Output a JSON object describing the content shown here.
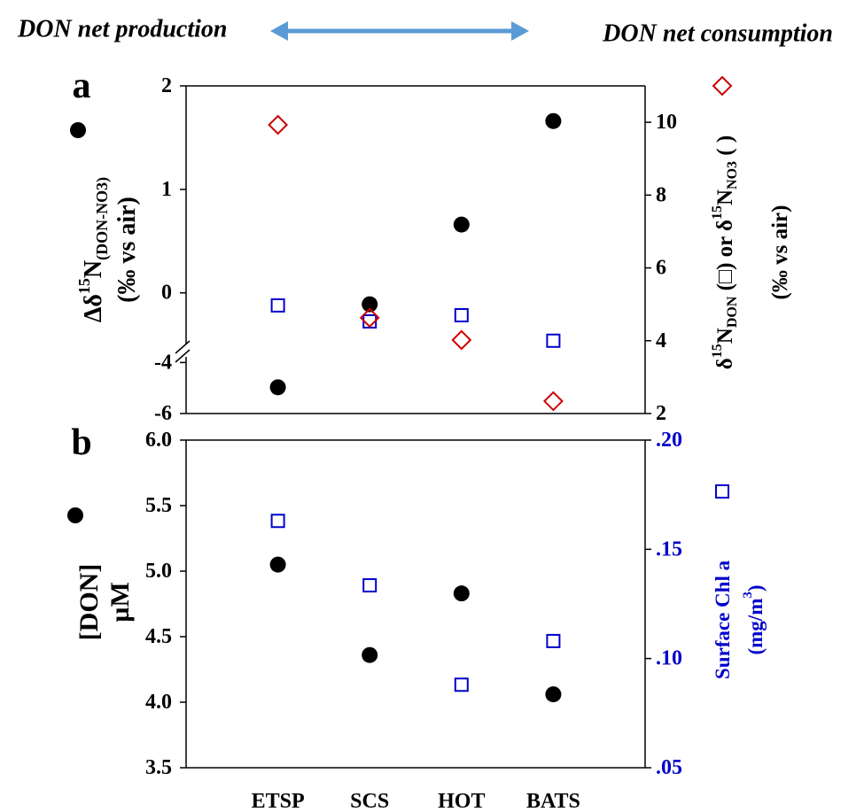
{
  "chart_data": [
    {
      "type": "scatter",
      "panel_label": "a",
      "annotations": [
        "DON net production",
        "DON net consumption"
      ],
      "ylabel": [
        [
          {
            "text": "Δδ"
          },
          {
            "text": "15",
            "shift": "super"
          },
          {
            "text": "N"
          },
          {
            "text": "(DON-NO3)",
            "shift": "sub"
          }
        ],
        [
          {
            "text": "(‰ vs air)"
          }
        ]
      ],
      "y2label": [
        [
          {
            "text": "δ"
          },
          {
            "text": "15",
            "shift": "super"
          },
          {
            "text": "N"
          },
          {
            "text": "DON",
            "shift": "sub"
          },
          {
            "text": " (□) or  δ"
          },
          {
            "text": "15",
            "shift": "super"
          },
          {
            "text": "N"
          },
          {
            "text": "NO3",
            "shift": "sub"
          },
          {
            "text": " (    )"
          }
        ],
        [
          {
            "text": "(‰ vs air)"
          }
        ]
      ],
      "y_segments": [
        {
          "ylim": [
            -0.55,
            2
          ],
          "yticks": [
            0,
            1,
            2
          ]
        },
        {
          "ylim": [
            -6,
            -3.5
          ],
          "yticks": [
            -6,
            -4
          ]
        }
      ],
      "y2lim": [
        2,
        11
      ],
      "y2ticks": [
        2,
        4,
        6,
        8,
        10
      ],
      "series": [
        {
          "marker": "circle",
          "color": "#000000",
          "values": [
            -4.97,
            -0.11,
            0.66,
            1.66
          ]
        },
        {
          "marker": "square",
          "color": "#0000cc",
          "axis": "y2",
          "values": [
            4.97,
            4.53,
            4.7,
            4.0
          ]
        },
        {
          "marker": "diamond",
          "color": "#cc0000",
          "axis": "y2",
          "values": [
            9.93,
            4.63,
            4.02,
            2.34
          ]
        }
      ]
    },
    {
      "type": "scatter",
      "panel_label": "b",
      "categories": [
        "ETSP",
        "SCS",
        "HOT",
        "BATS"
      ],
      "ylabel": [
        [
          {
            "text": "[DON]"
          }
        ],
        [
          {
            "text": "µM"
          }
        ]
      ],
      "y2label": [
        [
          {
            "text": "Surface Chl a"
          }
        ],
        [
          {
            "text": "(mg/m"
          },
          {
            "text": "3",
            "shift": "super"
          },
          {
            "text": ")"
          }
        ]
      ],
      "ylim": [
        3.5,
        6.0
      ],
      "yticks": [
        {
          "value": 3.5,
          "label": "3.5"
        },
        {
          "value": 4.0,
          "label": "4.0"
        },
        {
          "value": 4.5,
          "label": "4.5"
        },
        {
          "value": 5.0,
          "label": "5.0"
        },
        {
          "value": 5.5,
          "label": "5.5"
        },
        {
          "value": 6.0,
          "label": "6.0"
        }
      ],
      "y2lim": [
        0.05,
        0.2
      ],
      "y2ticks": [
        {
          "value": 0.05,
          "label": ".05"
        },
        {
          "value": 0.1,
          "label": ".10"
        },
        {
          "value": 0.15,
          "label": ".15"
        },
        {
          "value": 0.2,
          "label": ".20"
        }
      ],
      "y2color": "#0000cc",
      "series": [
        {
          "marker": "circle",
          "color": "#000000",
          "values": [
            5.05,
            4.36,
            4.83,
            4.06
          ]
        },
        {
          "marker": "square",
          "color": "#0000cc",
          "axis": "y2",
          "values": [
            0.163,
            0.1335,
            0.088,
            0.108
          ]
        }
      ]
    }
  ]
}
